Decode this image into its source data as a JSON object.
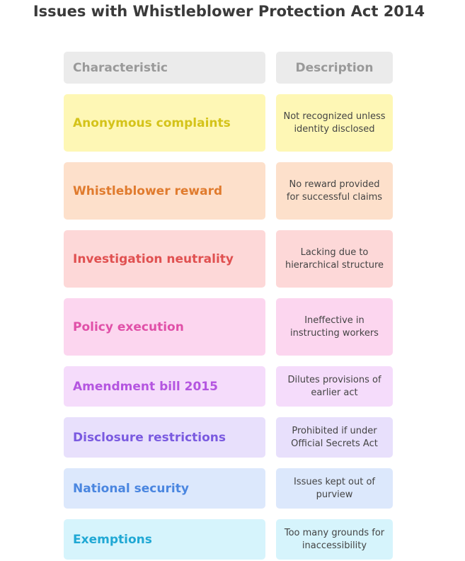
{
  "title": "Issues with Whistleblower Protection Act 2014",
  "header": {
    "characteristic": "Characteristic",
    "description": "Description",
    "bg": "#ebebeb",
    "color": "#999999"
  },
  "rows": [
    {
      "characteristic": "Anonymous complaints",
      "description": "Not recognized unless identity disclosed",
      "bg": "#fef7b5",
      "color": "#d4c31a"
    },
    {
      "characteristic": "Whistleblower reward",
      "description": "No reward provided for successful claims",
      "bg": "#fde0cb",
      "color": "#e07b2e"
    },
    {
      "characteristic": "Investigation neutrality",
      "description": "Lacking due to hierarchical structure",
      "bg": "#fdd8d8",
      "color": "#e05050"
    },
    {
      "characteristic": "Policy execution",
      "description": "Ineffective in instructing workers",
      "bg": "#fcd6ef",
      "color": "#e050a8"
    },
    {
      "characteristic": "Amendment bill 2015",
      "description": "Dilutes provisions of earlier act",
      "bg": "#f5dcfb",
      "color": "#b455e0"
    },
    {
      "characteristic": "Disclosure restrictions",
      "description": "Prohibited if under Official Secrets Act",
      "bg": "#e8e0fc",
      "color": "#7a5ae0"
    },
    {
      "characteristic": "National security",
      "description": "Issues kept out of purview",
      "bg": "#dce8fc",
      "color": "#4a86e0"
    },
    {
      "characteristic": "Exemptions",
      "description": "Too many grounds for inaccessibility",
      "bg": "#d6f4fc",
      "color": "#20a8d4"
    }
  ]
}
